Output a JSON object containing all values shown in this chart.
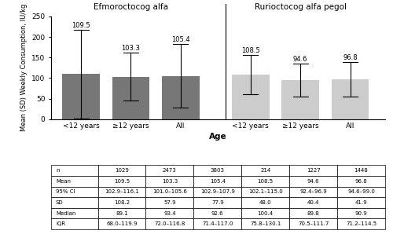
{
  "categories": [
    "<12 years",
    "≥12 years",
    "All",
    "<12 years",
    "≥12 years",
    "All"
  ],
  "means": [
    109.5,
    103.3,
    105.4,
    108.5,
    94.6,
    96.8
  ],
  "sd_upper": [
    217.7,
    161.2,
    183.3,
    156.5,
    135.0,
    138.7
  ],
  "sd_lower": [
    1.3,
    45.4,
    27.5,
    60.5,
    54.2,
    54.9
  ],
  "bar_colors_dark": "#777777",
  "bar_colors_light": "#cccccc",
  "group1_label": "Efmoroctocog alfa",
  "group2_label": "Rurioctocog alfa pegol",
  "xlabel": "Age",
  "ylabel": "Mean (SD) Weekly Consumption, IU/kg",
  "ylim": [
    0,
    250
  ],
  "yticks": [
    0,
    50,
    100,
    150,
    200,
    250
  ],
  "table_rows": [
    "n",
    "Mean",
    "95% CI",
    "SD",
    "Median",
    "IQR"
  ],
  "table_data": [
    [
      "1029",
      "2473",
      "3803",
      "214",
      "1227",
      "1448"
    ],
    [
      "109.5",
      "103.3",
      "105.4",
      "108.5",
      "94.6",
      "96.8"
    ],
    [
      "102.9–116.1",
      "101.0–105.6",
      "102.9–107.9",
      "102.1–115.0",
      "92.4–96.9",
      "94.6–99.0"
    ],
    [
      "108.2",
      "57.9",
      "77.9",
      "48.0",
      "40.4",
      "41.9"
    ],
    [
      "89.1",
      "93.4",
      "92.6",
      "100.4",
      "89.8",
      "90.9"
    ],
    [
      "68.0–119.9",
      "72.0–116.8",
      "71.4–117.0",
      "75.8–130.1",
      "70.5–111.7",
      "71.2–114.5"
    ]
  ]
}
